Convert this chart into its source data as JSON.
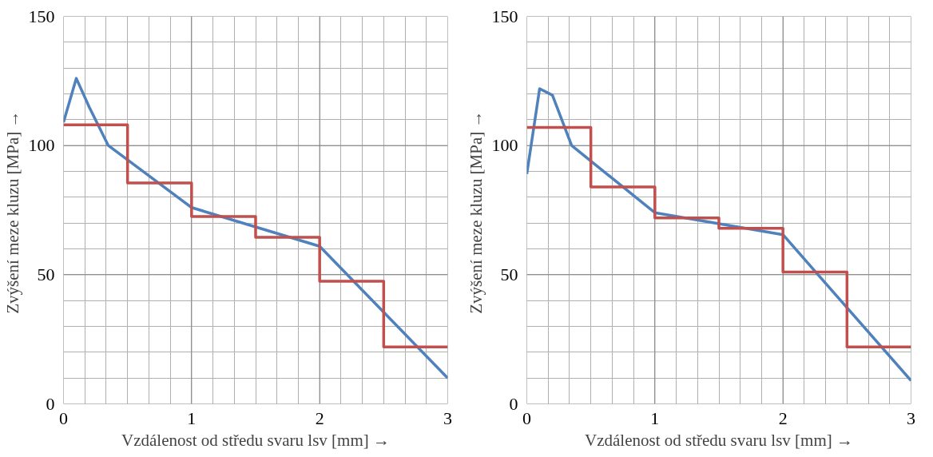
{
  "chart_data": [
    {
      "type": "line",
      "xlabel": "Vzdálenost od středu svaru lsv [mm] →",
      "ylabel": "Zvýšení meze kluzu  [MPa] →",
      "xlim": [
        0,
        3
      ],
      "ylim": [
        0,
        150
      ],
      "xticks": [
        0,
        {
          "value": 0.1667,
          "label": null
        },
        {
          "value": 0.3333,
          "label": null
        },
        {
          "value": 0.5,
          "label": null
        },
        {
          "value": 0.6667,
          "label": null
        },
        {
          "value": 0.8333,
          "label": null
        },
        1,
        {
          "value": 1.1667,
          "label": null
        },
        {
          "value": 1.3333,
          "label": null
        },
        {
          "value": 1.5,
          "label": null
        },
        {
          "value": 1.6667,
          "label": null
        },
        {
          "value": 1.8333,
          "label": null
        },
        2,
        {
          "value": 2.1667,
          "label": null
        },
        {
          "value": 2.3333,
          "label": null
        },
        {
          "value": 2.5,
          "label": null
        },
        {
          "value": 2.6667,
          "label": null
        },
        {
          "value": 2.8333,
          "label": null
        },
        3
      ],
      "yticks": [
        0,
        {
          "value": 10,
          "label": null
        },
        {
          "value": 20,
          "label": null
        },
        {
          "value": 30,
          "label": null
        },
        {
          "value": 40,
          "label": null
        },
        50,
        {
          "value": 60,
          "label": null
        },
        {
          "value": 70,
          "label": null
        },
        {
          "value": 80,
          "label": null
        },
        {
          "value": 90,
          "label": null
        },
        100,
        {
          "value": 110,
          "label": null
        },
        {
          "value": 120,
          "label": null
        },
        {
          "value": 130,
          "label": null
        },
        {
          "value": 140,
          "label": null
        },
        150
      ],
      "grid": true,
      "series": [
        {
          "color": "#4f81bd",
          "x": [
            0,
            0.1,
            0.2,
            0.35,
            1,
            2,
            3
          ],
          "values": [
            109,
            126,
            115,
            100,
            76,
            61,
            10
          ]
        },
        {
          "type": "step",
          "color": "#c0504d",
          "x": [
            0,
            0.5,
            1,
            1.5,
            2,
            2.5,
            3
          ],
          "values": [
            108,
            85.5,
            72.5,
            64.5,
            47.5,
            22,
            22
          ]
        }
      ]
    },
    {
      "type": "line",
      "xlabel": "Vzdálenost od středu svaru lsv [mm] →",
      "ylabel": "Zvýšení meze kluzu  [MPa] →",
      "xlim": [
        0,
        3
      ],
      "ylim": [
        0,
        150
      ],
      "xticks": [
        0,
        {
          "value": 0.1667,
          "label": null
        },
        {
          "value": 0.3333,
          "label": null
        },
        {
          "value": 0.5,
          "label": null
        },
        {
          "value": 0.6667,
          "label": null
        },
        {
          "value": 0.8333,
          "label": null
        },
        1,
        {
          "value": 1.1667,
          "label": null
        },
        {
          "value": 1.3333,
          "label": null
        },
        {
          "value": 1.5,
          "label": null
        },
        {
          "value": 1.6667,
          "label": null
        },
        {
          "value": 1.8333,
          "label": null
        },
        2,
        {
          "value": 2.1667,
          "label": null
        },
        {
          "value": 2.3333,
          "label": null
        },
        {
          "value": 2.5,
          "label": null
        },
        {
          "value": 2.6667,
          "label": null
        },
        {
          "value": 2.8333,
          "label": null
        },
        3
      ],
      "yticks": [
        0,
        {
          "value": 10,
          "label": null
        },
        {
          "value": 20,
          "label": null
        },
        {
          "value": 30,
          "label": null
        },
        {
          "value": 40,
          "label": null
        },
        50,
        {
          "value": 60,
          "label": null
        },
        {
          "value": 70,
          "label": null
        },
        {
          "value": 80,
          "label": null
        },
        {
          "value": 90,
          "label": null
        },
        100,
        {
          "value": 110,
          "label": null
        },
        {
          "value": 120,
          "label": null
        },
        {
          "value": 130,
          "label": null
        },
        {
          "value": 140,
          "label": null
        },
        150
      ],
      "grid": true,
      "series": [
        {
          "color": "#4f81bd",
          "x": [
            0,
            0.1,
            0.2,
            0.35,
            1,
            2,
            3
          ],
          "values": [
            89,
            122,
            119.5,
            100,
            74,
            65.5,
            9
          ]
        },
        {
          "type": "step",
          "color": "#c0504d",
          "x": [
            0,
            0.5,
            1,
            1.5,
            2,
            2.5,
            3
          ],
          "values": [
            107,
            84,
            72,
            68,
            51,
            22,
            22
          ]
        }
      ]
    }
  ]
}
